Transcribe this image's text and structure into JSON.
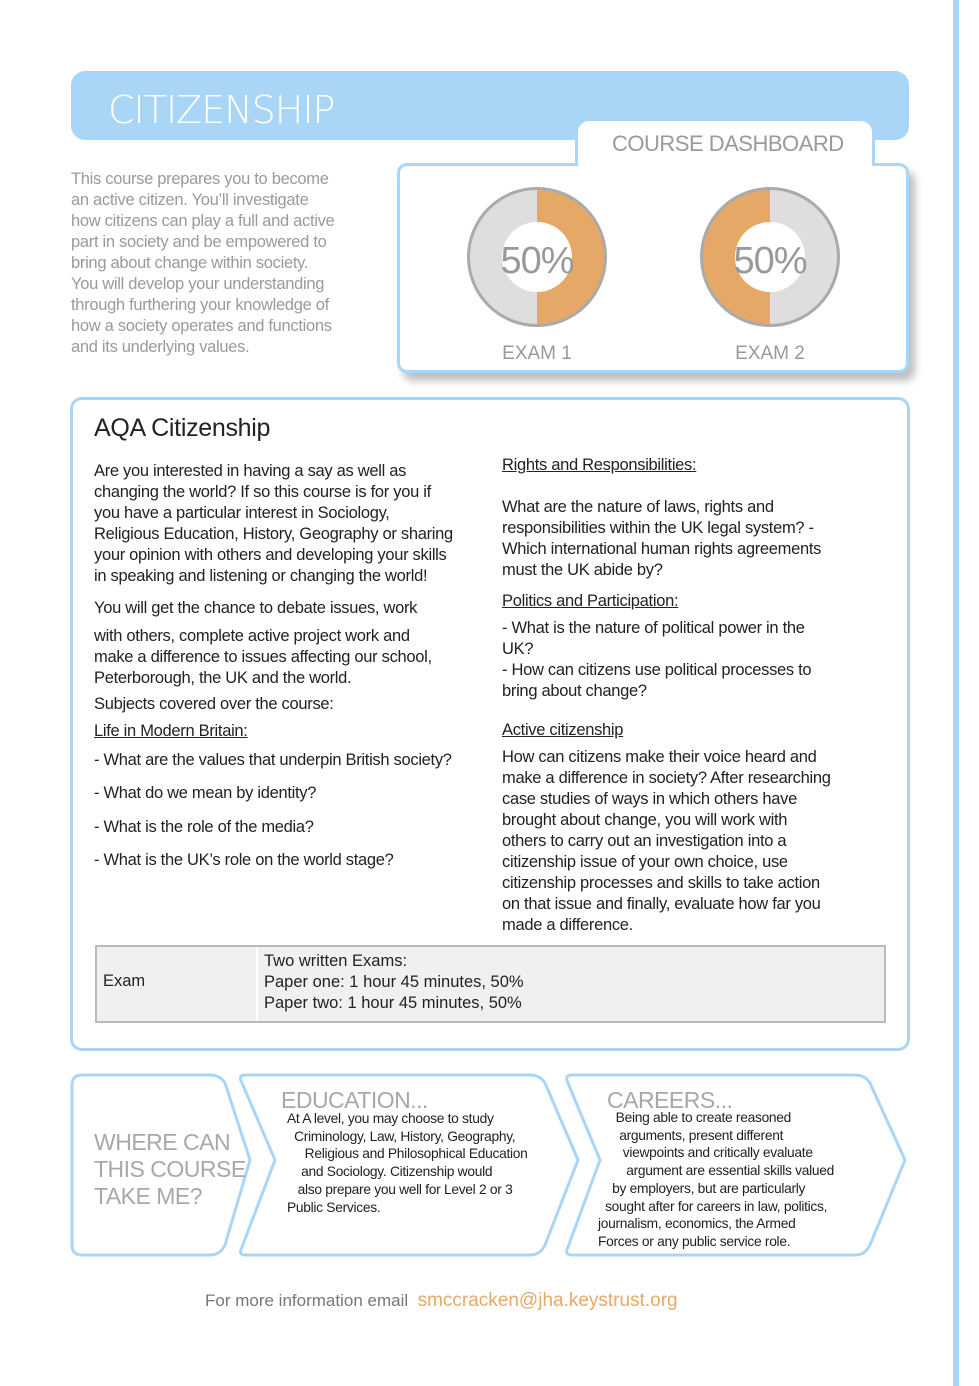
{
  "header": {
    "title": "CITIZENSHIP"
  },
  "intro": "This course prepares you to become\nan active citizen. You’ll investigate\nhow citizens can play a full and active\npart in society and be empowered to\nbring about change within society.\nYou will develop your understanding\nthrough furthering your knowledge of\nhow a society operates and functions\nand its underlying values.",
  "dashboard": {
    "title": "COURSE DASHBOARD",
    "accent": "#e6a867",
    "track": "#dedede",
    "items": [
      {
        "label": "EXAM 1",
        "percent_text": "50%",
        "percent": 50
      },
      {
        "label": "EXAM 2",
        "percent_text": "50%",
        "percent": 50
      }
    ]
  },
  "main": {
    "heading": "AQA Citizenship",
    "p1": "Are you interested in having a say as well as\nchanging the world? If so this course is for you if\nyou have a particular interest in Sociology,\nReligious Education, History, Geography or sharing\nyour opinion with others and developing your skills\nin speaking and listening or changing the world!",
    "p2a": "You will get the chance to debate issues, work",
    "p2b": "with others, complete active project work and\nmake a difference to issues affecting our school,\nPeterborough, the UK and the world.",
    "p3": "Subjects covered over the course:",
    "life_heading": "Life in Modern Britain:",
    "life_items": [
      "- What are the values that underpin British society?",
      "- What do we mean by identity?",
      "- What is the role of the media?",
      "- What is the UK’s role on the world stage?"
    ],
    "rights_heading": "Rights and Responsibilities: ",
    "rights_text": "What are the nature of laws, rights and\nresponsibilities within the UK legal system?  -\n Which international human rights agreements\nmust the UK abide by?",
    "politics_heading": "Politics and Participation:",
    "politics_text": "- What is the nature of political power in the\nUK?\n- How can citizens use political processes to\nbring about change?",
    "active_heading": "Active citizenship",
    "active_text": "How can citizens make their voice heard and\nmake a difference in society? After researching\ncase studies of ways in which others have\nbrought about change, you will work with\nothers to carry out an investigation into a\ncitizenship issue of your own choice, use\ncitizenship processes and skills to take action\non that issue and finally, evaluate how far you\nmade a difference.",
    "table": {
      "label": "Exam",
      "value": "Two written Exams:\nPaper one: 1 hour 45 minutes, 50%\nPaper two: 1 hour 45 minutes, 50%"
    }
  },
  "pathway": {
    "question": "WHERE CAN\nTHIS COURSE\nTAKE ME?",
    "education_title": "EDUCATION...",
    "education_text": "At A level, you may choose to study\n  Criminology, Law, History, Geography,\n     Religious and Philosophical Education\n    and Sociology. Citizenship would\n   also prepare you well for Level 2 or 3\nPublic Services.",
    "careers_title": "CAREERS...",
    "careers_text": "     Being able to create reasoned\n      arguments, present different\n       viewpoints and critically evaluate\n        argument are essential skills valued\n    by employers, but are particularly\n  sought after for careers in law, politics,\njournalism, economics, the Armed\nForces or any public service role."
  },
  "footer": {
    "text": "For more information email",
    "email": "smccracken@jha.keystrust.org"
  }
}
